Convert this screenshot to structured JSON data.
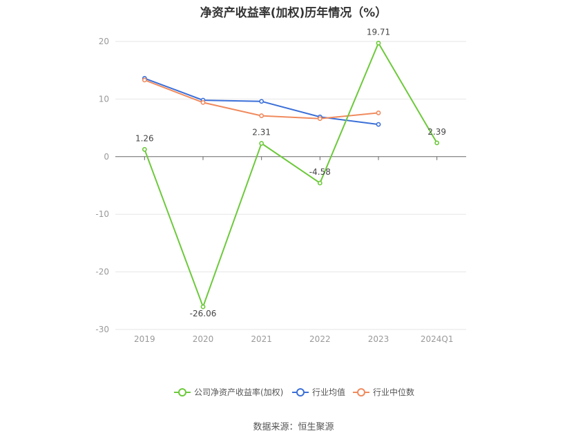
{
  "chart_data": {
    "type": "line",
    "title": "净资产收益率(加权)历年情况（%）",
    "categories": [
      "2019",
      "2020",
      "2021",
      "2022",
      "2023",
      "2024Q1"
    ],
    "ylim": [
      -30,
      20
    ],
    "yticks": [
      20,
      10,
      0,
      -10,
      -20,
      -30
    ],
    "grid": true,
    "legend_position": "bottom",
    "series": [
      {
        "name": "公司净资产收益率(加权)",
        "color": "#6cc93a",
        "values": [
          1.26,
          -26.06,
          2.31,
          -4.58,
          19.71,
          2.39
        ],
        "labels": [
          "1.26",
          "-26.06",
          "2.31",
          "-4.58",
          "19.71",
          "2.39"
        ]
      },
      {
        "name": "行业均值",
        "color": "#3a6fd8",
        "values": [
          13.6,
          9.8,
          9.6,
          6.9,
          5.6,
          null
        ]
      },
      {
        "name": "行业中位数",
        "color": "#f08a5d",
        "values": [
          13.3,
          9.4,
          7.1,
          6.6,
          7.6,
          null
        ]
      }
    ]
  },
  "source": "数据来源：恒生聚源"
}
